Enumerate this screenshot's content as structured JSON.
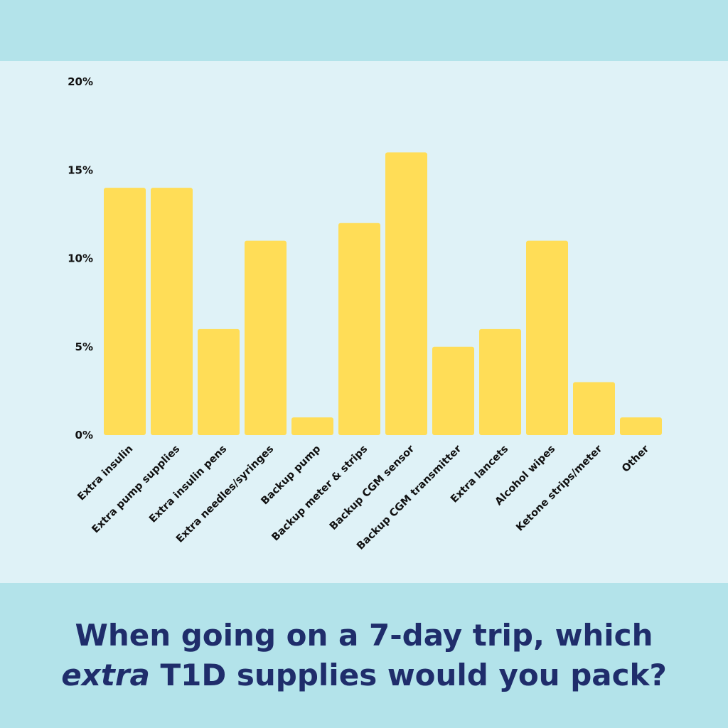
{
  "colors": {
    "band": "#b3e3ea",
    "panel": "#dff2f7",
    "bar": "#ffdd57",
    "title": "#1f2d6b",
    "text": "#111111"
  },
  "title": {
    "line1": "When going on a 7-day trip, which",
    "line2_em": "extra",
    "line2_rest": " T1D supplies would you pack?"
  },
  "chart_data": {
    "type": "bar",
    "title": "When going on a 7-day trip, which extra T1D supplies would you pack?",
    "xlabel": "",
    "ylabel": "",
    "ylim": [
      0,
      20
    ],
    "yticks": [
      "0%",
      "5%",
      "10%",
      "15%",
      "20%"
    ],
    "ytick_values": [
      0,
      5,
      10,
      15,
      20
    ],
    "grid": false,
    "legend": "none",
    "categories": [
      "Extra insulin",
      "Extra pump supplies",
      "Extra insulin pens",
      "Extra needles/syringes",
      "Backup pump",
      "Backup meter & strips",
      "Backup CGM sensor",
      "Backup CGM transmitter",
      "Extra lancets",
      "Alcohol wipes",
      "Ketone strips/meter",
      "Other"
    ],
    "values": [
      14,
      14,
      6,
      11,
      1,
      12,
      16,
      5,
      6,
      11,
      3,
      1
    ]
  }
}
